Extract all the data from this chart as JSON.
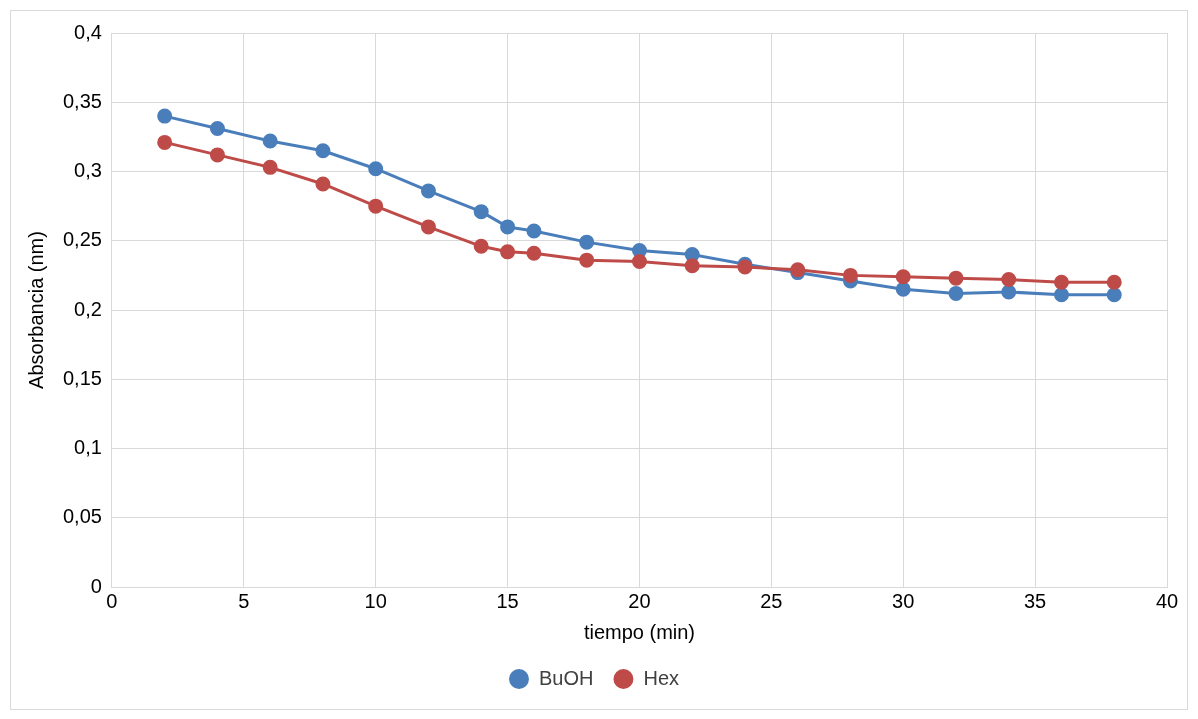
{
  "chart_data": {
    "type": "line",
    "xlabel": "tiempo (min)",
    "ylabel": "Absorbancia (nm)",
    "x": [
      2,
      4,
      6,
      8,
      10,
      12,
      14,
      15,
      16,
      18,
      20,
      22,
      24,
      26,
      28,
      30,
      32,
      34,
      36,
      38
    ],
    "series": [
      {
        "name": "BuOH",
        "color": "#4a7ebb",
        "values": [
          0.34,
          0.331,
          0.322,
          0.315,
          0.302,
          0.286,
          0.271,
          0.26,
          0.257,
          0.249,
          0.243,
          0.24,
          0.233,
          0.227,
          0.221,
          0.215,
          0.212,
          0.213,
          0.211,
          0.211
        ]
      },
      {
        "name": "Hex",
        "color": "#be4b48",
        "values": [
          0.321,
          0.312,
          0.303,
          0.291,
          0.275,
          0.26,
          0.246,
          0.242,
          0.241,
          0.236,
          0.235,
          0.232,
          0.231,
          0.229,
          0.225,
          0.224,
          0.223,
          0.222,
          0.22,
          0.22
        ]
      }
    ],
    "xlim": [
      0,
      40
    ],
    "xticks": [
      0,
      5,
      10,
      15,
      20,
      25,
      30,
      35,
      40
    ],
    "ylim": [
      0,
      0.4
    ],
    "yticks": [
      0,
      {
        "value": 0.05,
        "label": "0,05"
      },
      {
        "value": 0.1,
        "label": "0,1"
      },
      {
        "value": 0.15,
        "label": "0,15"
      },
      {
        "value": 0.2,
        "label": "0,2"
      },
      {
        "value": 0.25,
        "label": "0,25"
      },
      {
        "value": 0.3,
        "label": "0,3"
      },
      {
        "value": 0.35,
        "label": "0,35"
      },
      {
        "value": 0.4,
        "label": "0,4"
      }
    ],
    "grid": true,
    "legend": "bottom",
    "marker": "circle",
    "line_style": "solid"
  }
}
